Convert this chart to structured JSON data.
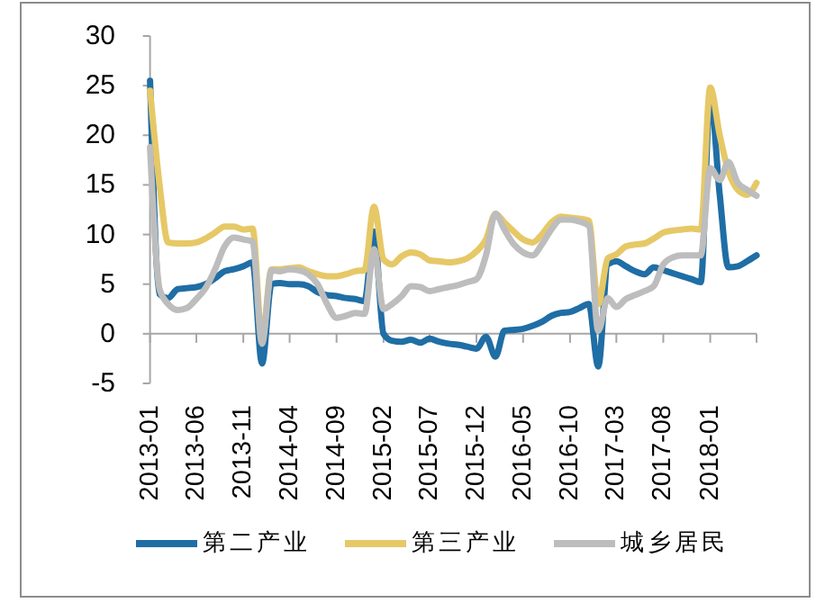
{
  "chart_data": {
    "type": "line",
    "x": [
      "2013-01",
      "2013-02",
      "2013-03",
      "2013-04",
      "2013-05",
      "2013-06",
      "2013-07",
      "2013-08",
      "2013-09",
      "2013-10",
      "2013-11",
      "2013-12",
      "2014-01",
      "2014-02",
      "2014-03",
      "2014-04",
      "2014-05",
      "2014-06",
      "2014-07",
      "2014-08",
      "2014-09",
      "2014-10",
      "2014-11",
      "2014-12",
      "2015-01",
      "2015-02",
      "2015-03",
      "2015-04",
      "2015-05",
      "2015-06",
      "2015-07",
      "2015-08",
      "2015-09",
      "2015-10",
      "2015-11",
      "2015-12",
      "2016-01",
      "2016-02",
      "2016-03",
      "2016-04",
      "2016-05",
      "2016-06",
      "2016-07",
      "2016-08",
      "2016-09",
      "2016-10",
      "2016-11",
      "2016-12",
      "2017-01",
      "2017-02",
      "2017-03",
      "2017-04",
      "2017-05",
      "2017-06",
      "2017-07",
      "2017-08",
      "2017-09",
      "2017-10",
      "2017-11",
      "2017-12",
      "2018-01",
      "2018-02",
      "2018-03",
      "2018-04",
      "2018-05",
      "2018-06"
    ],
    "series": [
      {
        "name": "第二产业",
        "color": "#1f6ea5",
        "values": [
          25.5,
          4.0,
          3.6,
          4.5,
          4.6,
          4.7,
          5.0,
          5.6,
          6.3,
          6.5,
          6.8,
          7.2,
          -3.0,
          5.0,
          5.1,
          5.0,
          5.0,
          4.8,
          4.2,
          3.9,
          3.8,
          3.6,
          3.5,
          3.3,
          10.3,
          0.0,
          -0.7,
          -0.8,
          -0.6,
          -0.9,
          -0.5,
          -0.8,
          -1.0,
          -1.1,
          -1.3,
          -1.5,
          -0.3,
          -2.3,
          0.3,
          0.4,
          0.5,
          0.8,
          1.2,
          1.8,
          2.1,
          2.2,
          2.6,
          3.0,
          -3.3,
          7.0,
          7.3,
          6.8,
          6.3,
          6.0,
          6.7,
          6.4,
          6.1,
          5.8,
          5.5,
          5.2,
          24.0,
          14.0,
          6.7,
          6.8,
          7.3,
          7.9
        ]
      },
      {
        "name": "第三产业",
        "color": "#e6c866",
        "values": [
          24.5,
          15.0,
          9.2,
          9.1,
          9.1,
          9.2,
          9.6,
          10.2,
          10.8,
          10.8,
          10.5,
          10.6,
          -0.5,
          6.5,
          6.5,
          6.6,
          6.7,
          6.3,
          6.0,
          5.8,
          5.8,
          6.0,
          6.3,
          6.4,
          12.8,
          7.5,
          7.0,
          7.8,
          8.2,
          8.0,
          7.4,
          7.3,
          7.2,
          7.3,
          7.6,
          8.3,
          9.5,
          12.1,
          11.2,
          10.3,
          9.5,
          9.2,
          10.0,
          11.2,
          11.8,
          11.7,
          11.6,
          11.4,
          3.0,
          7.6,
          8.0,
          8.8,
          9.0,
          9.1,
          9.6,
          10.2,
          10.4,
          10.5,
          10.6,
          10.5,
          24.8,
          20.0,
          16.4,
          14.5,
          14.0,
          15.2
        ]
      },
      {
        "name": "城乡居民",
        "color": "#bdbdbd",
        "values": [
          18.8,
          4.5,
          3.0,
          2.4,
          2.6,
          3.5,
          4.6,
          6.5,
          8.8,
          9.7,
          9.5,
          9.3,
          -1.0,
          6.4,
          6.3,
          6.5,
          6.4,
          6.0,
          5.0,
          3.0,
          1.6,
          1.8,
          2.1,
          2.0,
          8.5,
          2.5,
          3.0,
          3.8,
          4.8,
          4.7,
          4.3,
          4.5,
          4.7,
          4.9,
          5.2,
          5.5,
          7.9,
          12.1,
          10.5,
          9.0,
          8.2,
          7.9,
          9.0,
          10.5,
          11.5,
          11.5,
          11.3,
          10.9,
          0.3,
          3.6,
          2.7,
          3.5,
          3.9,
          4.3,
          4.8,
          7.0,
          7.7,
          7.9,
          7.9,
          7.9,
          16.7,
          15.5,
          17.3,
          15.2,
          14.5,
          13.9
        ]
      }
    ],
    "xlim": [
      "2013-01",
      "2018-06"
    ],
    "xticks": [
      "2013-01",
      "2013-06",
      "2013-11",
      "2014-04",
      "2014-09",
      "2015-02",
      "2015-07",
      "2015-12",
      "2016-05",
      "2016-10",
      "2017-03",
      "2017-08",
      "2018-01",
      {
        "value": "2018-06",
        "label": null
      }
    ],
    "ylim": [
      -5,
      30
    ],
    "yticks": [
      -5,
      0,
      5,
      10,
      15,
      20,
      25,
      30
    ],
    "legend": "bottom"
  }
}
